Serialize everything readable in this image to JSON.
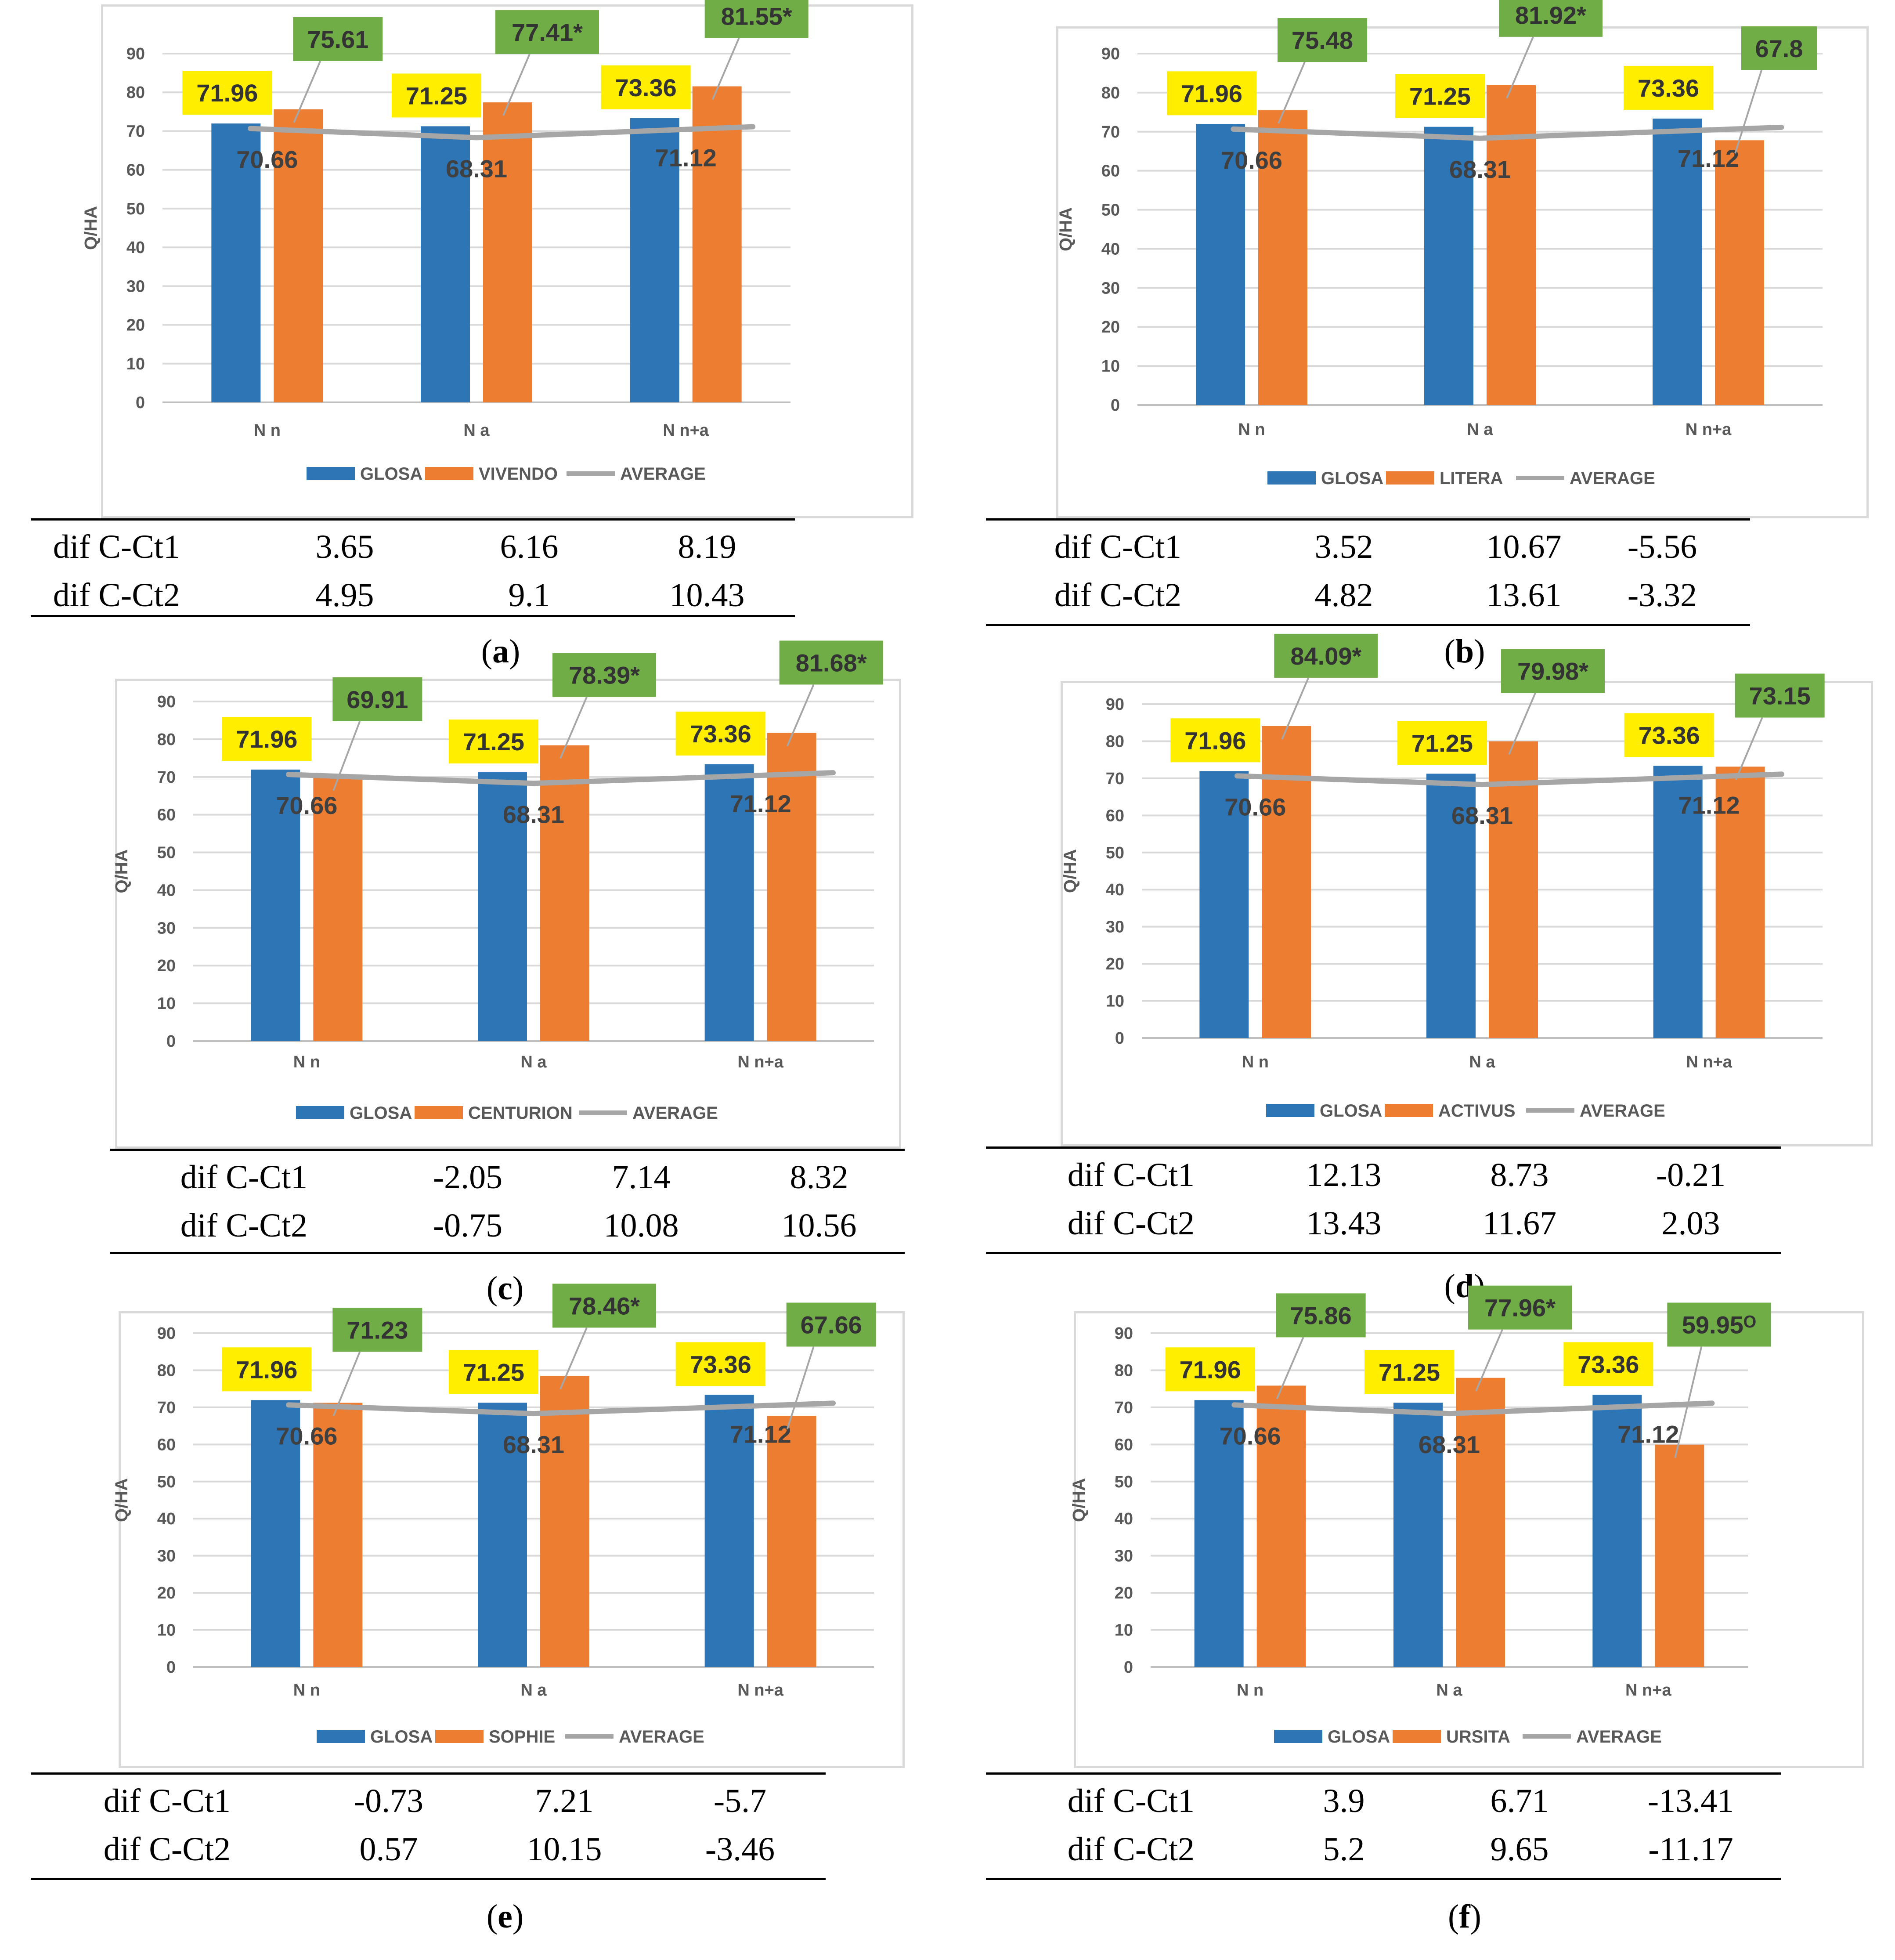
{
  "colors": {
    "glosa": "#2e75b6",
    "variety": "#ed7d31",
    "average": "#a6a6a6",
    "label_yellow": "#ffee00",
    "label_green": "#70ad47",
    "grid": "#d9d9d9"
  },
  "chart_data": [
    {
      "type": "bar",
      "panel": "a",
      "ylabel": "Q/HA",
      "ylim": [
        0,
        90
      ],
      "yticks": [
        "0",
        "10",
        "20",
        "30",
        "40",
        "50",
        "60",
        "70",
        "80",
        "90"
      ],
      "categories": [
        "N n",
        "N a",
        "N n+a"
      ],
      "series": [
        {
          "name": "GLOSA",
          "values": [
            71.96,
            71.25,
            73.36
          ],
          "labels": [
            "71.96",
            "71.25",
            "73.36"
          ]
        },
        {
          "name": "VIVENDO",
          "values": [
            75.61,
            77.41,
            81.55
          ],
          "labels": [
            "75.61",
            "77.41*",
            "81.55*"
          ]
        },
        {
          "name": "AVERAGE",
          "values": [
            70.66,
            68.31,
            71.12
          ],
          "labels": [
            "70.66",
            "68.31",
            "71.12"
          ]
        }
      ],
      "legend": [
        "GLOSA",
        "VIVENDO",
        "AVERAGE"
      ],
      "table": {
        "rows": [
          {
            "label": "dif C-Ct1",
            "values": [
              "3.65",
              "6.16",
              "8.19"
            ]
          },
          {
            "label": "dif C-Ct2",
            "values": [
              "4.95",
              "9.1",
              "10.43"
            ]
          }
        ]
      },
      "caption": {
        "open": "(",
        "letter": "a",
        "close": ")"
      }
    },
    {
      "type": "bar",
      "panel": "b",
      "ylabel": "Q/HA",
      "ylim": [
        0,
        90
      ],
      "yticks": [
        "0",
        "10",
        "20",
        "30",
        "40",
        "50",
        "60",
        "70",
        "80",
        "90"
      ],
      "categories": [
        "N n",
        "N a",
        "N n+a"
      ],
      "series": [
        {
          "name": "GLOSA",
          "values": [
            71.96,
            71.25,
            73.36
          ],
          "labels": [
            "71.96",
            "71.25",
            "73.36"
          ]
        },
        {
          "name": "LITERA",
          "values": [
            75.48,
            81.92,
            67.8
          ],
          "labels": [
            "75.48",
            "81.92*",
            "67.8"
          ]
        },
        {
          "name": "AVERAGE",
          "values": [
            70.66,
            68.31,
            71.12
          ],
          "labels": [
            "70.66",
            "68.31",
            "71.12"
          ]
        }
      ],
      "legend": [
        "GLOSA",
        "LITERA",
        "AVERAGE"
      ],
      "table": {
        "rows": [
          {
            "label": "dif C-Ct1",
            "values": [
              "3.52",
              "10.67",
              "-5.56"
            ]
          },
          {
            "label": "dif C-Ct2",
            "values": [
              "4.82",
              "13.61",
              "-3.32"
            ]
          }
        ]
      },
      "caption": {
        "open": "(",
        "letter": "b",
        "close": ")"
      }
    },
    {
      "type": "bar",
      "panel": "c",
      "ylabel": "Q/HA",
      "ylim": [
        0,
        90
      ],
      "yticks": [
        "0",
        "10",
        "20",
        "30",
        "40",
        "50",
        "60",
        "70",
        "80",
        "90"
      ],
      "categories": [
        "N n",
        "N a",
        "N n+a"
      ],
      "series": [
        {
          "name": "GLOSA",
          "values": [
            71.96,
            71.25,
            73.36
          ],
          "labels": [
            "71.96",
            "71.25",
            "73.36"
          ]
        },
        {
          "name": "CENTURION",
          "values": [
            69.91,
            78.39,
            81.68
          ],
          "labels": [
            "69.91",
            "78.39*",
            "81.68*"
          ]
        },
        {
          "name": "AVERAGE",
          "values": [
            70.66,
            68.31,
            71.12
          ],
          "labels": [
            "70.66",
            "68.31",
            "71.12"
          ]
        }
      ],
      "legend": [
        "GLOSA",
        "CENTURION",
        "AVERAGE"
      ],
      "table": {
        "rows": [
          {
            "label": "dif C-Ct1",
            "values": [
              "-2.05",
              "7.14",
              "8.32"
            ]
          },
          {
            "label": "dif C-Ct2",
            "values": [
              "-0.75",
              "10.08",
              "10.56"
            ]
          }
        ]
      },
      "caption": {
        "open": "(",
        "letter": "c",
        "close": ")"
      }
    },
    {
      "type": "bar",
      "panel": "d",
      "ylabel": "Q/HA",
      "ylim": [
        0,
        90
      ],
      "yticks": [
        "0",
        "10",
        "20",
        "30",
        "40",
        "50",
        "60",
        "70",
        "80",
        "90"
      ],
      "categories": [
        "N n",
        "N a",
        "N n+a"
      ],
      "series": [
        {
          "name": "GLOSA",
          "values": [
            71.96,
            71.25,
            73.36
          ],
          "labels": [
            "71.96",
            "71.25",
            "73.36"
          ]
        },
        {
          "name": "ACTIVUS",
          "values": [
            84.09,
            79.98,
            73.15
          ],
          "labels": [
            "84.09*",
            "79.98*",
            "73.15"
          ]
        },
        {
          "name": "AVERAGE",
          "values": [
            70.66,
            68.31,
            71.12
          ],
          "labels": [
            "70.66",
            "68.31",
            "71.12"
          ]
        }
      ],
      "legend": [
        "GLOSA",
        "ACTIVUS",
        "AVERAGE"
      ],
      "table": {
        "rows": [
          {
            "label": "dif C-Ct1",
            "values": [
              "12.13",
              "8.73",
              "-0.21"
            ]
          },
          {
            "label": "dif C-Ct2",
            "values": [
              "13.43",
              "11.67",
              "2.03"
            ]
          }
        ]
      },
      "caption": {
        "open": "(",
        "letter": "d",
        "close": ")"
      }
    },
    {
      "type": "bar",
      "panel": "e",
      "ylabel": "Q/HA",
      "ylim": [
        0,
        90
      ],
      "yticks": [
        "0",
        "10",
        "20",
        "30",
        "40",
        "50",
        "60",
        "70",
        "80",
        "90"
      ],
      "categories": [
        "N n",
        "N a",
        "N n+a"
      ],
      "series": [
        {
          "name": "GLOSA",
          "values": [
            71.96,
            71.25,
            73.36
          ],
          "labels": [
            "71.96",
            "71.25",
            "73.36"
          ]
        },
        {
          "name": "SOPHIE",
          "values": [
            71.23,
            78.46,
            67.66
          ],
          "labels": [
            "71.23",
            "78.46*",
            "67.66"
          ]
        },
        {
          "name": "AVERAGE",
          "values": [
            70.66,
            68.31,
            71.12
          ],
          "labels": [
            "70.66",
            "68.31",
            "71.12"
          ]
        }
      ],
      "legend": [
        "GLOSA",
        "SOPHIE",
        "AVERAGE"
      ],
      "table": {
        "rows": [
          {
            "label": "dif C-Ct1",
            "values": [
              "-0.73",
              "7.21",
              "-5.7"
            ]
          },
          {
            "label": "dif C-Ct2",
            "values": [
              "0.57",
              "10.15",
              "-3.46"
            ]
          }
        ]
      },
      "caption": {
        "open": "(",
        "letter": "e",
        "close": ")"
      }
    },
    {
      "type": "bar",
      "panel": "f",
      "ylabel": "Q/HA",
      "ylim": [
        0,
        90
      ],
      "yticks": [
        "0",
        "10",
        "20",
        "30",
        "40",
        "50",
        "60",
        "70",
        "80",
        "90"
      ],
      "categories": [
        "N n",
        "N a",
        "N n+a"
      ],
      "series": [
        {
          "name": "GLOSA",
          "values": [
            71.96,
            71.25,
            73.36
          ],
          "labels": [
            "71.96",
            "71.25",
            "73.36"
          ]
        },
        {
          "name": "URSITA",
          "values": [
            75.86,
            77.96,
            59.95
          ],
          "labels": [
            "75.86",
            "77.96*",
            "59.95ᴼ"
          ]
        },
        {
          "name": "AVERAGE",
          "values": [
            70.66,
            68.31,
            71.12
          ],
          "labels": [
            "70.66",
            "68.31",
            "71.12"
          ]
        }
      ],
      "legend": [
        "GLOSA",
        "URSITA",
        "AVERAGE"
      ],
      "table": {
        "rows": [
          {
            "label": "dif C-Ct1",
            "values": [
              "3.9",
              "6.71",
              "-13.41"
            ]
          },
          {
            "label": "dif C-Ct2",
            "values": [
              "5.2",
              "9.65",
              "-11.17"
            ]
          }
        ]
      },
      "caption": {
        "open": "(",
        "letter": "f",
        "close": ")"
      }
    }
  ]
}
